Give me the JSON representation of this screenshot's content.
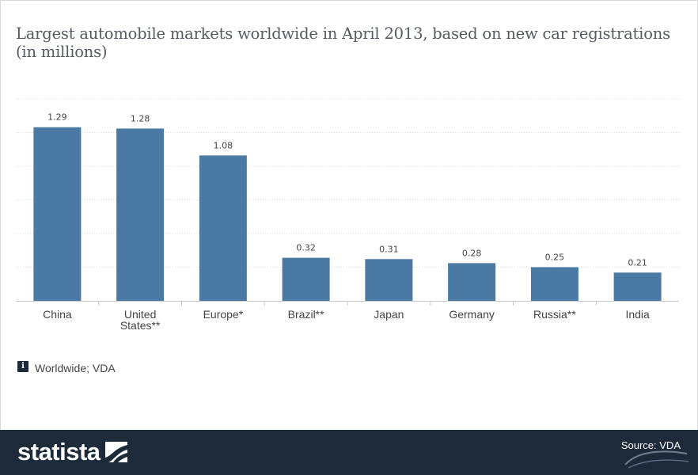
{
  "title": "Largest automobile markets worldwide in April 2013, based on new car registrations (in millions)",
  "info": "Worldwide; VDA",
  "footer": {
    "brand": "statista",
    "source": "Source: VDA"
  },
  "colors": {
    "bar": "#4a7aa4",
    "footer_bg": "#1c2a3a",
    "grid": "#d9d9d9"
  },
  "chart_data": {
    "type": "bar",
    "categories": [
      "China",
      "United States**",
      "Europe*",
      "Brazil**",
      "Japan",
      "Germany",
      "Russia**",
      "India"
    ],
    "category_lines": [
      [
        "China"
      ],
      [
        "United",
        "States**"
      ],
      [
        "Europe*"
      ],
      [
        "Brazil**"
      ],
      [
        "Japan"
      ],
      [
        "Germany"
      ],
      [
        "Russia**"
      ],
      [
        "India"
      ]
    ],
    "values": [
      1.29,
      1.28,
      1.08,
      0.32,
      0.31,
      0.28,
      0.25,
      0.21
    ],
    "value_labels": [
      "1.29",
      "1.28",
      "1.08",
      "0.32",
      "0.31",
      "0.28",
      "0.25",
      "0.21"
    ],
    "title": "",
    "xlabel": "",
    "ylabel": "",
    "ylim": [
      0,
      1.5
    ],
    "grid": true,
    "legend": "none"
  }
}
